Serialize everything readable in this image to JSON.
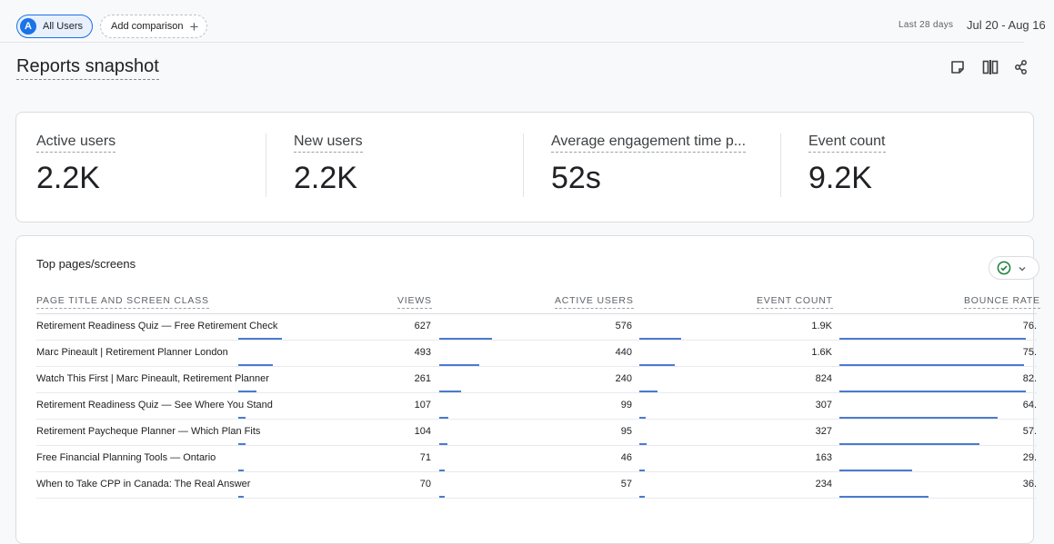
{
  "comparison": {
    "segment_badge": "A",
    "segment_label": "All Users",
    "add_label": "Add comparison",
    "add_icon": "+"
  },
  "date": {
    "label": "Last 28 days",
    "range": "Jul 20 - Aug 16"
  },
  "page_title": "Reports snapshot",
  "toolbar_icons": [
    "note-icon",
    "compare-icon",
    "share-icon"
  ],
  "metrics": [
    {
      "label": "Active users",
      "value": "2.2K"
    },
    {
      "label": "New users",
      "value": "2.2K"
    },
    {
      "label": "Average engagement time p...",
      "value": "52s"
    },
    {
      "label": "Event count",
      "value": "9.2K"
    }
  ],
  "table": {
    "title": "Top pages/screens",
    "headers": [
      "PAGE TITLE AND SCREEN CLASS",
      "VIEWS",
      "ACTIVE USERS",
      "EVENT COUNT",
      "BOUNCE RATE"
    ],
    "bar_color": "#4a7bd0",
    "rows": [
      {
        "title": "Retirement Readiness Quiz — Free Retirement Check",
        "views": "627",
        "active_users": "576",
        "event_count": "1.9K",
        "bounce_rate": "76.",
        "views_frac": 1.0,
        "users_frac": 1.0,
        "events_frac": 1.0,
        "bounce_frac": 1.0
      },
      {
        "title": "Marc Pineault | Retirement Planner London",
        "views": "493",
        "active_users": "440",
        "event_count": "1.6K",
        "bounce_rate": "75.",
        "views_frac": 0.79,
        "users_frac": 0.76,
        "events_frac": 0.84,
        "bounce_frac": 0.99
      },
      {
        "title": "Watch This First | Marc Pineault, Retirement Planner",
        "views": "261",
        "active_users": "240",
        "event_count": "824",
        "bounce_rate": "82.",
        "views_frac": 0.42,
        "users_frac": 0.42,
        "events_frac": 0.43,
        "bounce_frac": 1.0
      },
      {
        "title": "Retirement Readiness Quiz — See Where You Stand",
        "views": "107",
        "active_users": "99",
        "event_count": "307",
        "bounce_rate": "64.",
        "views_frac": 0.17,
        "users_frac": 0.17,
        "events_frac": 0.16,
        "bounce_frac": 0.85
      },
      {
        "title": "Retirement Paycheque Planner — Which Plan Fits",
        "views": "104",
        "active_users": "95",
        "event_count": "327",
        "bounce_rate": "57.",
        "views_frac": 0.17,
        "users_frac": 0.16,
        "events_frac": 0.17,
        "bounce_frac": 0.75
      },
      {
        "title": "Free Financial Planning Tools — Ontario",
        "views": "71",
        "active_users": "46",
        "event_count": "163",
        "bounce_rate": "29.",
        "views_frac": 0.11,
        "users_frac": 0.08,
        "events_frac": 0.09,
        "bounce_frac": 0.39
      },
      {
        "title": "When to Take CPP in Canada: The Real Answer",
        "views": "70",
        "active_users": "57",
        "event_count": "234",
        "bounce_rate": "36.",
        "views_frac": 0.11,
        "users_frac": 0.1,
        "events_frac": 0.12,
        "bounce_frac": 0.48
      }
    ]
  }
}
